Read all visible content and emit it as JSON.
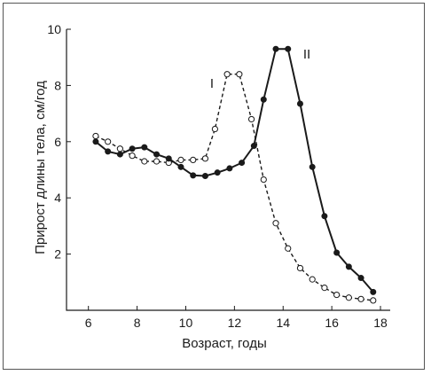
{
  "chart_data": {
    "type": "line",
    "xlabel": "Возраст, годы",
    "ylabel": "Прирост длины тела, см/год",
    "xlim": [
      5.1,
      18.4
    ],
    "ylim": [
      0,
      10
    ],
    "xticks": [
      "6",
      "8",
      "10",
      "12",
      "14",
      "16",
      "18"
    ],
    "yticks": [
      "2",
      "4",
      "6",
      "8",
      "10"
    ],
    "grid": false,
    "legend": "inline labels",
    "series": [
      {
        "name": "I",
        "style": "dashed",
        "marker": "open-circle",
        "color": "#1a1a1a",
        "x": [
          6.3,
          6.8,
          7.3,
          7.8,
          8.3,
          8.8,
          9.3,
          9.8,
          10.3,
          10.8,
          11.2,
          11.7,
          12.2,
          12.7,
          13.2,
          13.7,
          14.2,
          14.7,
          15.2,
          15.7,
          16.2,
          16.7,
          17.2,
          17.7
        ],
        "y": [
          6.2,
          6.0,
          5.75,
          5.5,
          5.3,
          5.3,
          5.25,
          5.35,
          5.35,
          5.4,
          6.45,
          8.4,
          8.4,
          6.8,
          4.65,
          3.1,
          2.2,
          1.5,
          1.1,
          0.8,
          0.55,
          0.45,
          0.4,
          0.35
        ]
      },
      {
        "name": "II",
        "style": "solid",
        "marker": "filled-circle",
        "color": "#1a1a1a",
        "x": [
          6.3,
          6.8,
          7.3,
          7.8,
          8.3,
          8.8,
          9.3,
          9.8,
          10.3,
          10.8,
          11.3,
          11.8,
          12.3,
          12.8,
          13.2,
          13.7,
          14.2,
          14.7,
          15.2,
          15.7,
          16.2,
          16.7,
          17.2,
          17.7
        ],
        "y": [
          6.0,
          5.65,
          5.55,
          5.75,
          5.8,
          5.55,
          5.4,
          5.1,
          4.8,
          4.78,
          4.9,
          5.05,
          5.25,
          5.85,
          7.5,
          9.3,
          9.3,
          7.35,
          5.1,
          3.35,
          2.05,
          1.55,
          1.15,
          0.65
        ]
      }
    ]
  }
}
